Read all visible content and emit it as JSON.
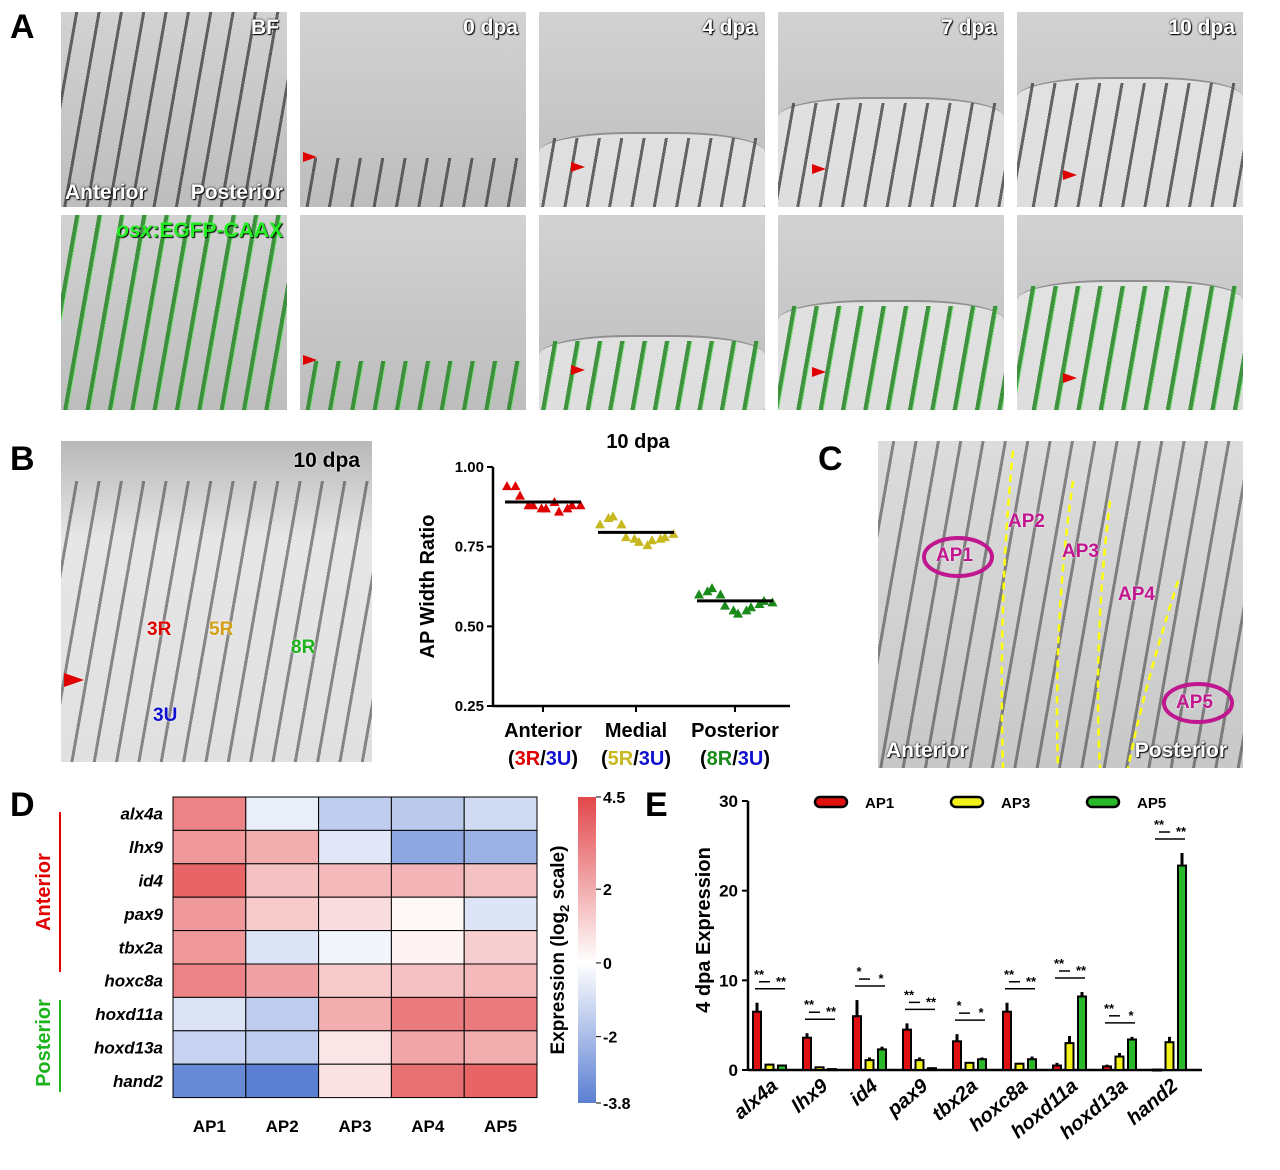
{
  "panels": {
    "A": "A",
    "B": "B",
    "C": "C",
    "D": "D",
    "E": "E"
  },
  "panelA": {
    "top_labels": [
      "BF",
      "0 dpa",
      "4 dpa",
      "7 dpa",
      "10 dpa"
    ],
    "anterior": "Anterior",
    "posterior": "Posterior",
    "reporter_italic": "osx",
    "reporter_rest": ":EGFP-CAAX"
  },
  "panelB": {
    "photo_label": "10 dpa",
    "ray_labels": {
      "r3": "3R",
      "r5": "5R",
      "r8": "8R",
      "u3": "3U"
    },
    "colors": {
      "red": "#e00000",
      "orange": "#d4a017",
      "green": "#1db31d",
      "blue": "#1010d0"
    }
  },
  "panelC": {
    "regions": [
      "AP1",
      "AP2",
      "AP3",
      "AP4",
      "AP5"
    ],
    "anterior": "Anterior",
    "posterior": "Posterior",
    "accent": "#c0168f"
  },
  "chart_data": [
    {
      "panel": "B",
      "type": "scatter",
      "title": "10 dpa",
      "ylabel": "AP Width Ratio",
      "ylim": [
        0.25,
        1.0
      ],
      "yticks": [
        "1.00",
        "0.75",
        "0.50",
        "0.25"
      ],
      "categories": [
        {
          "name": "Anterior",
          "num": "3R",
          "sep": "/",
          "den": "3U",
          "color": "#e00000",
          "mean": 0.89,
          "points": [
            0.94,
            0.94,
            0.91,
            0.88,
            0.88,
            0.87,
            0.87,
            0.89,
            0.86,
            0.87,
            0.88,
            0.88
          ]
        },
        {
          "name": "Medial",
          "num": "5R",
          "sep": "/",
          "den": "3U",
          "color": "#c8b820",
          "mean": 0.795,
          "points": [
            0.82,
            0.84,
            0.845,
            0.82,
            0.78,
            0.775,
            0.765,
            0.755,
            0.77,
            0.775,
            0.78,
            0.79
          ]
        },
        {
          "name": "Posterior",
          "num": "8R",
          "sep": "/",
          "den": "3U",
          "color": "#1a8a1a",
          "mean": 0.58,
          "points": [
            0.6,
            0.61,
            0.62,
            0.6,
            0.565,
            0.55,
            0.54,
            0.55,
            0.56,
            0.57,
            0.58,
            0.575
          ]
        }
      ]
    },
    {
      "panel": "D",
      "type": "heatmap",
      "columns": [
        "AP1",
        "AP2",
        "AP3",
        "AP4",
        "AP5"
      ],
      "rows": [
        "alx4a",
        "lhx9",
        "id4",
        "pax9",
        "tbx2a",
        "hoxc8a",
        "hoxd11a",
        "hoxd13a",
        "hand2"
      ],
      "values": [
        [
          3.0,
          -0.5,
          -1.5,
          -1.6,
          -1.1
        ],
        [
          2.5,
          2.0,
          -0.7,
          -2.6,
          -2.3
        ],
        [
          3.8,
          1.5,
          1.7,
          1.8,
          1.5
        ],
        [
          2.5,
          1.3,
          0.8,
          0.2,
          -0.8
        ],
        [
          2.5,
          -0.8,
          -0.3,
          0.3,
          1.2
        ],
        [
          3.0,
          2.3,
          1.3,
          1.5,
          1.7
        ],
        [
          -0.8,
          -1.5,
          2.0,
          3.2,
          3.2
        ],
        [
          -1.3,
          -1.5,
          0.6,
          2.2,
          2.0
        ],
        [
          -3.5,
          -3.8,
          0.7,
          3.5,
          3.8
        ]
      ],
      "group_labels": {
        "anterior": "Anterior",
        "posterior": "Posterior"
      },
      "colorbar": {
        "min": -3.8,
        "max": 4.5,
        "ticks": [
          "4.5",
          "2",
          "0",
          "-2",
          "-3.8"
        ],
        "label_pre": "Expression (log",
        "label_sub": "2",
        "label_post": " scale)",
        "low_color": "#5b7fd3",
        "mid_color": "#ffffff",
        "high_color": "#e2474b"
      }
    },
    {
      "panel": "E",
      "type": "bar",
      "ylabel": "4 dpa Expression",
      "ylim": [
        0,
        30
      ],
      "yticks": [
        "30",
        "20",
        "10",
        "0"
      ],
      "categories": [
        "alx4a",
        "lhx9",
        "id4",
        "pax9",
        "tbx2a",
        "hoxc8a",
        "hoxd11a",
        "hoxd13a",
        "hand2"
      ],
      "series": [
        {
          "name": "AP1",
          "color": "#e01010",
          "values": [
            6.5,
            3.6,
            6.0,
            4.5,
            3.2,
            6.5,
            0.5,
            0.4,
            0.05
          ],
          "errors": [
            1.0,
            0.5,
            1.8,
            0.7,
            0.8,
            1.0,
            0.3,
            0.2,
            0.05
          ]
        },
        {
          "name": "AP3",
          "color": "#f2f21a",
          "values": [
            0.6,
            0.3,
            1.1,
            1.1,
            0.8,
            0.7,
            3.0,
            1.5,
            3.1
          ],
          "errors": [
            0.1,
            0.1,
            0.3,
            0.3,
            0.1,
            0.1,
            0.8,
            0.4,
            0.6
          ]
        },
        {
          "name": "AP5",
          "color": "#28b828",
          "values": [
            0.5,
            0.1,
            2.3,
            0.2,
            1.2,
            1.2,
            8.2,
            3.4,
            22.8
          ],
          "errors": [
            0.1,
            0.05,
            0.3,
            0.1,
            0.2,
            0.3,
            0.5,
            0.3,
            1.4
          ]
        }
      ],
      "significance": [
        [
          "**",
          "**"
        ],
        [
          "**",
          "**"
        ],
        [
          "*",
          "*"
        ],
        [
          "**",
          "**"
        ],
        [
          "*",
          "*"
        ],
        [
          "**",
          "**"
        ],
        [
          "**",
          "**"
        ],
        [
          "**",
          "*"
        ],
        [
          "**",
          "**"
        ]
      ]
    }
  ]
}
